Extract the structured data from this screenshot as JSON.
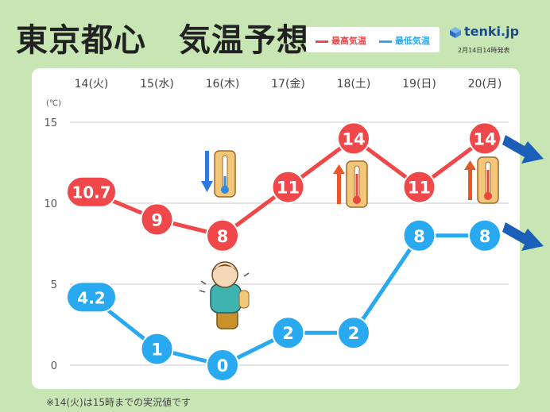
{
  "title": "東京都心　気温予想",
  "legend": {
    "high": "最高気温",
    "low": "最低気温"
  },
  "brand": {
    "name": "tenki.jp",
    "issued": "2月14日14時発表"
  },
  "footnote": "※14(火)は15時までの実況値です",
  "unit": "(℃)",
  "colors": {
    "high": "#f0474a",
    "low": "#29a9f0",
    "background": "#c8e6b4",
    "panel": "#ffffff",
    "arrow": "#1b5fb8"
  },
  "chart_data": {
    "type": "line",
    "categories": [
      "14(火)",
      "15(水)",
      "16(木)",
      "17(金)",
      "18(土)",
      "19(日)",
      "20(月)"
    ],
    "series": [
      {
        "name": "最高気温",
        "values": [
          10.7,
          9,
          8,
          11,
          14,
          11,
          14
        ],
        "labels": [
          "10.7",
          "9",
          "8",
          "11",
          "14",
          "11",
          "14"
        ]
      },
      {
        "name": "最低気温",
        "values": [
          4.2,
          1,
          0,
          2,
          2,
          8,
          8
        ],
        "labels": [
          "4.2",
          "1",
          "0",
          "2",
          "2",
          "8",
          "8"
        ]
      }
    ],
    "yticks": [
      "0",
      "5",
      "10",
      "15"
    ],
    "ylim": [
      0,
      15
    ],
    "grid": true,
    "annotations": [
      {
        "type": "thermometer",
        "direction": "down",
        "day": "16(木)"
      },
      {
        "type": "thermometer",
        "direction": "up",
        "day": "18(土)"
      },
      {
        "type": "thermometer",
        "direction": "up",
        "day": "20(月)"
      },
      {
        "type": "cold-person-illustration",
        "day": "16(木)"
      }
    ]
  }
}
